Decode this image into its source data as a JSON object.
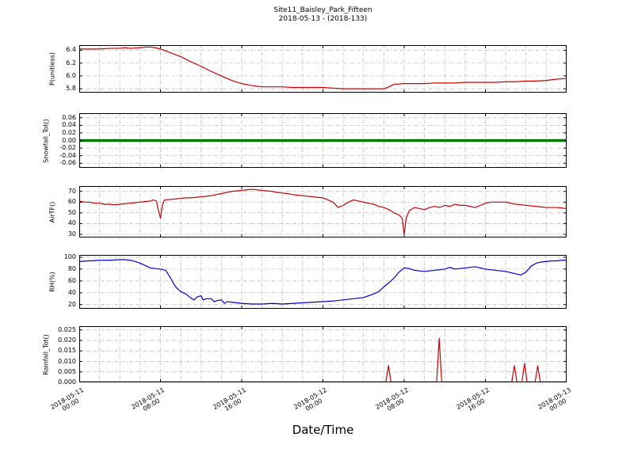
{
  "figure": {
    "title_line1": "Site11_Baisley_Park_Fifteen",
    "title_line2": "2018-05-13 - (2018-133)",
    "xaxis_label": "Date/Time",
    "background": "#ffffff",
    "grid_color": "#b3b3b3",
    "grid_style": "dash-dot",
    "xlim": [
      0,
      48
    ],
    "x_minor_step": 2,
    "x_tick_hours": [
      0,
      8,
      16,
      24,
      32,
      40,
      48
    ],
    "x_tick_labels": [
      "2018-05-11 00:00",
      "2018-05-11 08:00",
      "2018-05-11 16:00",
      "2018-05-12 00:00",
      "2018-05-12 08:00",
      "2018-05-12 16:00",
      "2018-05-13 00:00"
    ]
  },
  "chart_data": [
    {
      "type": "line",
      "ylabel": "P(unitless)",
      "color": "#cc0000",
      "linewidth": 1.2,
      "ylim": [
        5.74,
        6.48
      ],
      "ytick_values": [
        5.8,
        6.0,
        6.2,
        6.4
      ],
      "ytick_labels": [
        "5.8",
        "6.0",
        "6.2",
        "6.4"
      ],
      "points": [
        [
          0,
          6.42
        ],
        [
          1,
          6.42
        ],
        [
          2,
          6.42
        ],
        [
          3,
          6.43
        ],
        [
          4,
          6.43
        ],
        [
          4.5,
          6.44
        ],
        [
          5,
          6.43
        ],
        [
          6,
          6.44
        ],
        [
          6.5,
          6.45
        ],
        [
          7,
          6.45
        ],
        [
          7.5,
          6.44
        ],
        [
          8,
          6.42
        ],
        [
          9,
          6.36
        ],
        [
          10,
          6.3
        ],
        [
          11,
          6.22
        ],
        [
          12,
          6.15
        ],
        [
          13,
          6.07
        ],
        [
          14,
          6.0
        ],
        [
          15,
          5.93
        ],
        [
          16,
          5.88
        ],
        [
          17,
          5.85
        ],
        [
          18,
          5.83
        ],
        [
          19,
          5.83
        ],
        [
          20,
          5.83
        ],
        [
          21,
          5.82
        ],
        [
          22,
          5.82
        ],
        [
          23,
          5.82
        ],
        [
          24,
          5.82
        ],
        [
          25,
          5.81
        ],
        [
          26,
          5.8
        ],
        [
          27,
          5.8
        ],
        [
          28,
          5.8
        ],
        [
          29,
          5.8
        ],
        [
          30,
          5.8
        ],
        [
          30.5,
          5.83
        ],
        [
          31,
          5.87
        ],
        [
          32,
          5.88
        ],
        [
          33,
          5.88
        ],
        [
          34,
          5.88
        ],
        [
          35,
          5.89
        ],
        [
          36,
          5.89
        ],
        [
          37,
          5.89
        ],
        [
          38,
          5.9
        ],
        [
          39,
          5.9
        ],
        [
          40,
          5.9
        ],
        [
          41,
          5.9
        ],
        [
          42,
          5.91
        ],
        [
          43,
          5.91
        ],
        [
          44,
          5.92
        ],
        [
          45,
          5.92
        ],
        [
          46,
          5.93
        ],
        [
          47,
          5.95
        ],
        [
          48,
          5.96
        ]
      ]
    },
    {
      "type": "line",
      "ylabel": "Snowfall_Tot()",
      "color": "#007700",
      "linewidth": 3.5,
      "ylim": [
        -0.072,
        0.072
      ],
      "ytick_values": [
        -0.06,
        -0.04,
        -0.02,
        0.0,
        0.02,
        0.04,
        0.06
      ],
      "ytick_labels": [
        "-0.06",
        "-0.04",
        "-0.02",
        "0.00",
        "0.02",
        "0.04",
        "0.06"
      ],
      "points": [
        [
          0,
          0
        ],
        [
          48,
          0
        ]
      ]
    },
    {
      "type": "line",
      "ylabel": "AirTF()",
      "color": "#cc0000",
      "linewidth": 1.2,
      "ylim": [
        27,
        75
      ],
      "ytick_values": [
        30,
        40,
        50,
        60,
        70
      ],
      "ytick_labels": [
        "30",
        "40",
        "50",
        "60",
        "70"
      ],
      "points": [
        [
          0,
          61
        ],
        [
          0.5,
          60
        ],
        [
          1,
          60
        ],
        [
          1.5,
          59
        ],
        [
          2,
          59
        ],
        [
          2.5,
          58
        ],
        [
          3,
          58
        ],
        [
          3.5,
          57.5
        ],
        [
          4,
          58
        ],
        [
          4.5,
          58.5
        ],
        [
          5,
          59
        ],
        [
          5.5,
          59.5
        ],
        [
          6,
          60
        ],
        [
          6.5,
          60.5
        ],
        [
          7,
          61
        ],
        [
          7.3,
          62
        ],
        [
          7.6,
          61
        ],
        [
          7.8,
          52
        ],
        [
          8,
          45
        ],
        [
          8.2,
          58
        ],
        [
          8.4,
          62
        ],
        [
          9,
          62.5
        ],
        [
          9.5,
          63
        ],
        [
          10,
          63.5
        ],
        [
          10.5,
          64
        ],
        [
          11,
          64
        ],
        [
          11.5,
          64.5
        ],
        [
          12,
          65
        ],
        [
          12.5,
          65.5
        ],
        [
          13,
          66
        ],
        [
          13.5,
          67
        ],
        [
          14,
          68
        ],
        [
          14.5,
          69
        ],
        [
          15,
          70
        ],
        [
          15.5,
          70.5
        ],
        [
          16,
          71
        ],
        [
          16.5,
          71.5
        ],
        [
          17,
          72
        ],
        [
          17.5,
          71.5
        ],
        [
          18,
          71
        ],
        [
          18.5,
          70.5
        ],
        [
          19,
          70
        ],
        [
          19.5,
          69
        ],
        [
          20,
          68.5
        ],
        [
          20.5,
          68
        ],
        [
          21,
          67
        ],
        [
          21.5,
          66.5
        ],
        [
          22,
          66
        ],
        [
          22.5,
          65.5
        ],
        [
          23,
          65
        ],
        [
          23.5,
          64.5
        ],
        [
          24,
          64
        ],
        [
          24.5,
          62
        ],
        [
          25,
          60
        ],
        [
          25.5,
          55
        ],
        [
          26,
          57
        ],
        [
          26.5,
          60
        ],
        [
          27,
          62
        ],
        [
          27.5,
          61
        ],
        [
          28,
          60
        ],
        [
          28.5,
          59
        ],
        [
          29,
          58
        ],
        [
          29.5,
          56
        ],
        [
          30,
          55
        ],
        [
          30.5,
          53
        ],
        [
          31,
          50
        ],
        [
          31.5,
          48
        ],
        [
          31.8,
          45
        ],
        [
          32,
          30
        ],
        [
          32.2,
          45
        ],
        [
          32.5,
          52
        ],
        [
          33,
          55
        ],
        [
          33.5,
          54
        ],
        [
          34,
          53
        ],
        [
          34.5,
          55
        ],
        [
          35,
          56
        ],
        [
          35.5,
          55
        ],
        [
          36,
          57
        ],
        [
          36.5,
          56
        ],
        [
          37,
          58
        ],
        [
          37.5,
          57
        ],
        [
          38,
          57
        ],
        [
          38.5,
          56
        ],
        [
          39,
          55
        ],
        [
          39.5,
          57
        ],
        [
          40,
          59
        ],
        [
          40.5,
          60
        ],
        [
          41,
          60
        ],
        [
          41.5,
          60
        ],
        [
          42,
          60
        ],
        [
          42.5,
          59
        ],
        [
          43,
          58
        ],
        [
          43.5,
          57.5
        ],
        [
          44,
          57
        ],
        [
          44.5,
          56.5
        ],
        [
          45,
          56
        ],
        [
          45.5,
          55.5
        ],
        [
          46,
          55
        ],
        [
          46.5,
          55
        ],
        [
          47,
          55
        ],
        [
          47.5,
          54.5
        ],
        [
          48,
          54
        ]
      ]
    },
    {
      "type": "line",
      "ylabel": "RH(%)",
      "color": "#0000cc",
      "linewidth": 1.2,
      "ylim": [
        13,
        104
      ],
      "ytick_values": [
        20,
        40,
        60,
        80,
        100
      ],
      "ytick_labels": [
        "20",
        "40",
        "60",
        "80",
        "100"
      ],
      "points": [
        [
          0,
          93
        ],
        [
          0.5,
          93.5
        ],
        [
          1,
          94
        ],
        [
          1.5,
          94.5
        ],
        [
          2,
          95
        ],
        [
          2.5,
          95
        ],
        [
          3,
          95
        ],
        [
          3.5,
          95.5
        ],
        [
          4,
          96
        ],
        [
          4.5,
          96
        ],
        [
          5,
          95
        ],
        [
          5.5,
          93
        ],
        [
          6,
          90
        ],
        [
          6.5,
          86
        ],
        [
          7,
          82
        ],
        [
          7.5,
          81
        ],
        [
          8,
          80
        ],
        [
          8.5,
          78
        ],
        [
          9,
          65
        ],
        [
          9.3,
          55
        ],
        [
          9.6,
          48
        ],
        [
          10,
          42
        ],
        [
          10.5,
          38
        ],
        [
          11,
          31
        ],
        [
          11.3,
          28
        ],
        [
          11.6,
          33
        ],
        [
          12,
          35
        ],
        [
          12.2,
          28
        ],
        [
          12.5,
          30
        ],
        [
          13,
          30
        ],
        [
          13.3,
          25
        ],
        [
          13.6,
          27
        ],
        [
          14,
          28
        ],
        [
          14.3,
          22
        ],
        [
          14.6,
          25
        ],
        [
          15,
          24
        ],
        [
          15.5,
          23
        ],
        [
          16,
          22
        ],
        [
          16.5,
          21.5
        ],
        [
          17,
          21
        ],
        [
          17.5,
          21
        ],
        [
          18,
          21
        ],
        [
          18.5,
          21.5
        ],
        [
          19,
          22
        ],
        [
          19.5,
          21.5
        ],
        [
          20,
          21
        ],
        [
          20.5,
          21.5
        ],
        [
          21,
          22
        ],
        [
          21.5,
          22.5
        ],
        [
          22,
          23
        ],
        [
          22.5,
          23.5
        ],
        [
          23,
          24
        ],
        [
          23.5,
          24.5
        ],
        [
          24,
          25
        ],
        [
          24.5,
          25.5
        ],
        [
          25,
          26
        ],
        [
          25.5,
          27
        ],
        [
          26,
          28
        ],
        [
          26.5,
          29
        ],
        [
          27,
          30
        ],
        [
          27.5,
          31
        ],
        [
          28,
          32
        ],
        [
          28.5,
          35
        ],
        [
          29,
          38
        ],
        [
          29.5,
          42
        ],
        [
          30,
          50
        ],
        [
          30.5,
          57
        ],
        [
          31,
          65
        ],
        [
          31.5,
          75
        ],
        [
          32,
          82
        ],
        [
          32.5,
          81
        ],
        [
          33,
          78
        ],
        [
          33.5,
          77
        ],
        [
          34,
          76
        ],
        [
          34.5,
          77
        ],
        [
          35,
          78
        ],
        [
          35.5,
          79
        ],
        [
          36,
          80
        ],
        [
          36.5,
          83
        ],
        [
          37,
          80
        ],
        [
          37.5,
          81
        ],
        [
          38,
          82
        ],
        [
          38.5,
          83
        ],
        [
          39,
          84
        ],
        [
          39.5,
          82
        ],
        [
          40,
          80
        ],
        [
          40.5,
          79
        ],
        [
          41,
          78
        ],
        [
          41.5,
          77
        ],
        [
          42,
          76
        ],
        [
          42.5,
          74
        ],
        [
          43,
          72
        ],
        [
          43.5,
          70
        ],
        [
          44,
          75
        ],
        [
          44.5,
          85
        ],
        [
          45,
          90
        ],
        [
          45.5,
          92
        ],
        [
          46,
          93
        ],
        [
          46.5,
          94
        ],
        [
          47,
          94
        ],
        [
          47.5,
          95
        ],
        [
          48,
          95
        ]
      ]
    },
    {
      "type": "line",
      "ylabel": "Rainfall_Tot()",
      "color": "#cc0000",
      "linewidth": 1.2,
      "ylim": [
        0,
        0.0268
      ],
      "ytick_values": [
        0.0,
        0.005,
        0.01,
        0.015,
        0.02,
        0.025
      ],
      "ytick_labels": [
        "0.000",
        "0.005",
        "0.010",
        "0.015",
        "0.020",
        "0.025"
      ],
      "points": [
        [
          0,
          0
        ],
        [
          30.2,
          0
        ],
        [
          30.45,
          0.008
        ],
        [
          30.7,
          0
        ],
        [
          35.2,
          0
        ],
        [
          35.45,
          0.021
        ],
        [
          35.7,
          0
        ],
        [
          42.6,
          0
        ],
        [
          42.85,
          0.008
        ],
        [
          43.1,
          0
        ],
        [
          43.6,
          0
        ],
        [
          43.85,
          0.009
        ],
        [
          44.1,
          0
        ],
        [
          44.9,
          0
        ],
        [
          45.15,
          0.008
        ],
        [
          45.4,
          0
        ],
        [
          48,
          0
        ]
      ]
    }
  ]
}
